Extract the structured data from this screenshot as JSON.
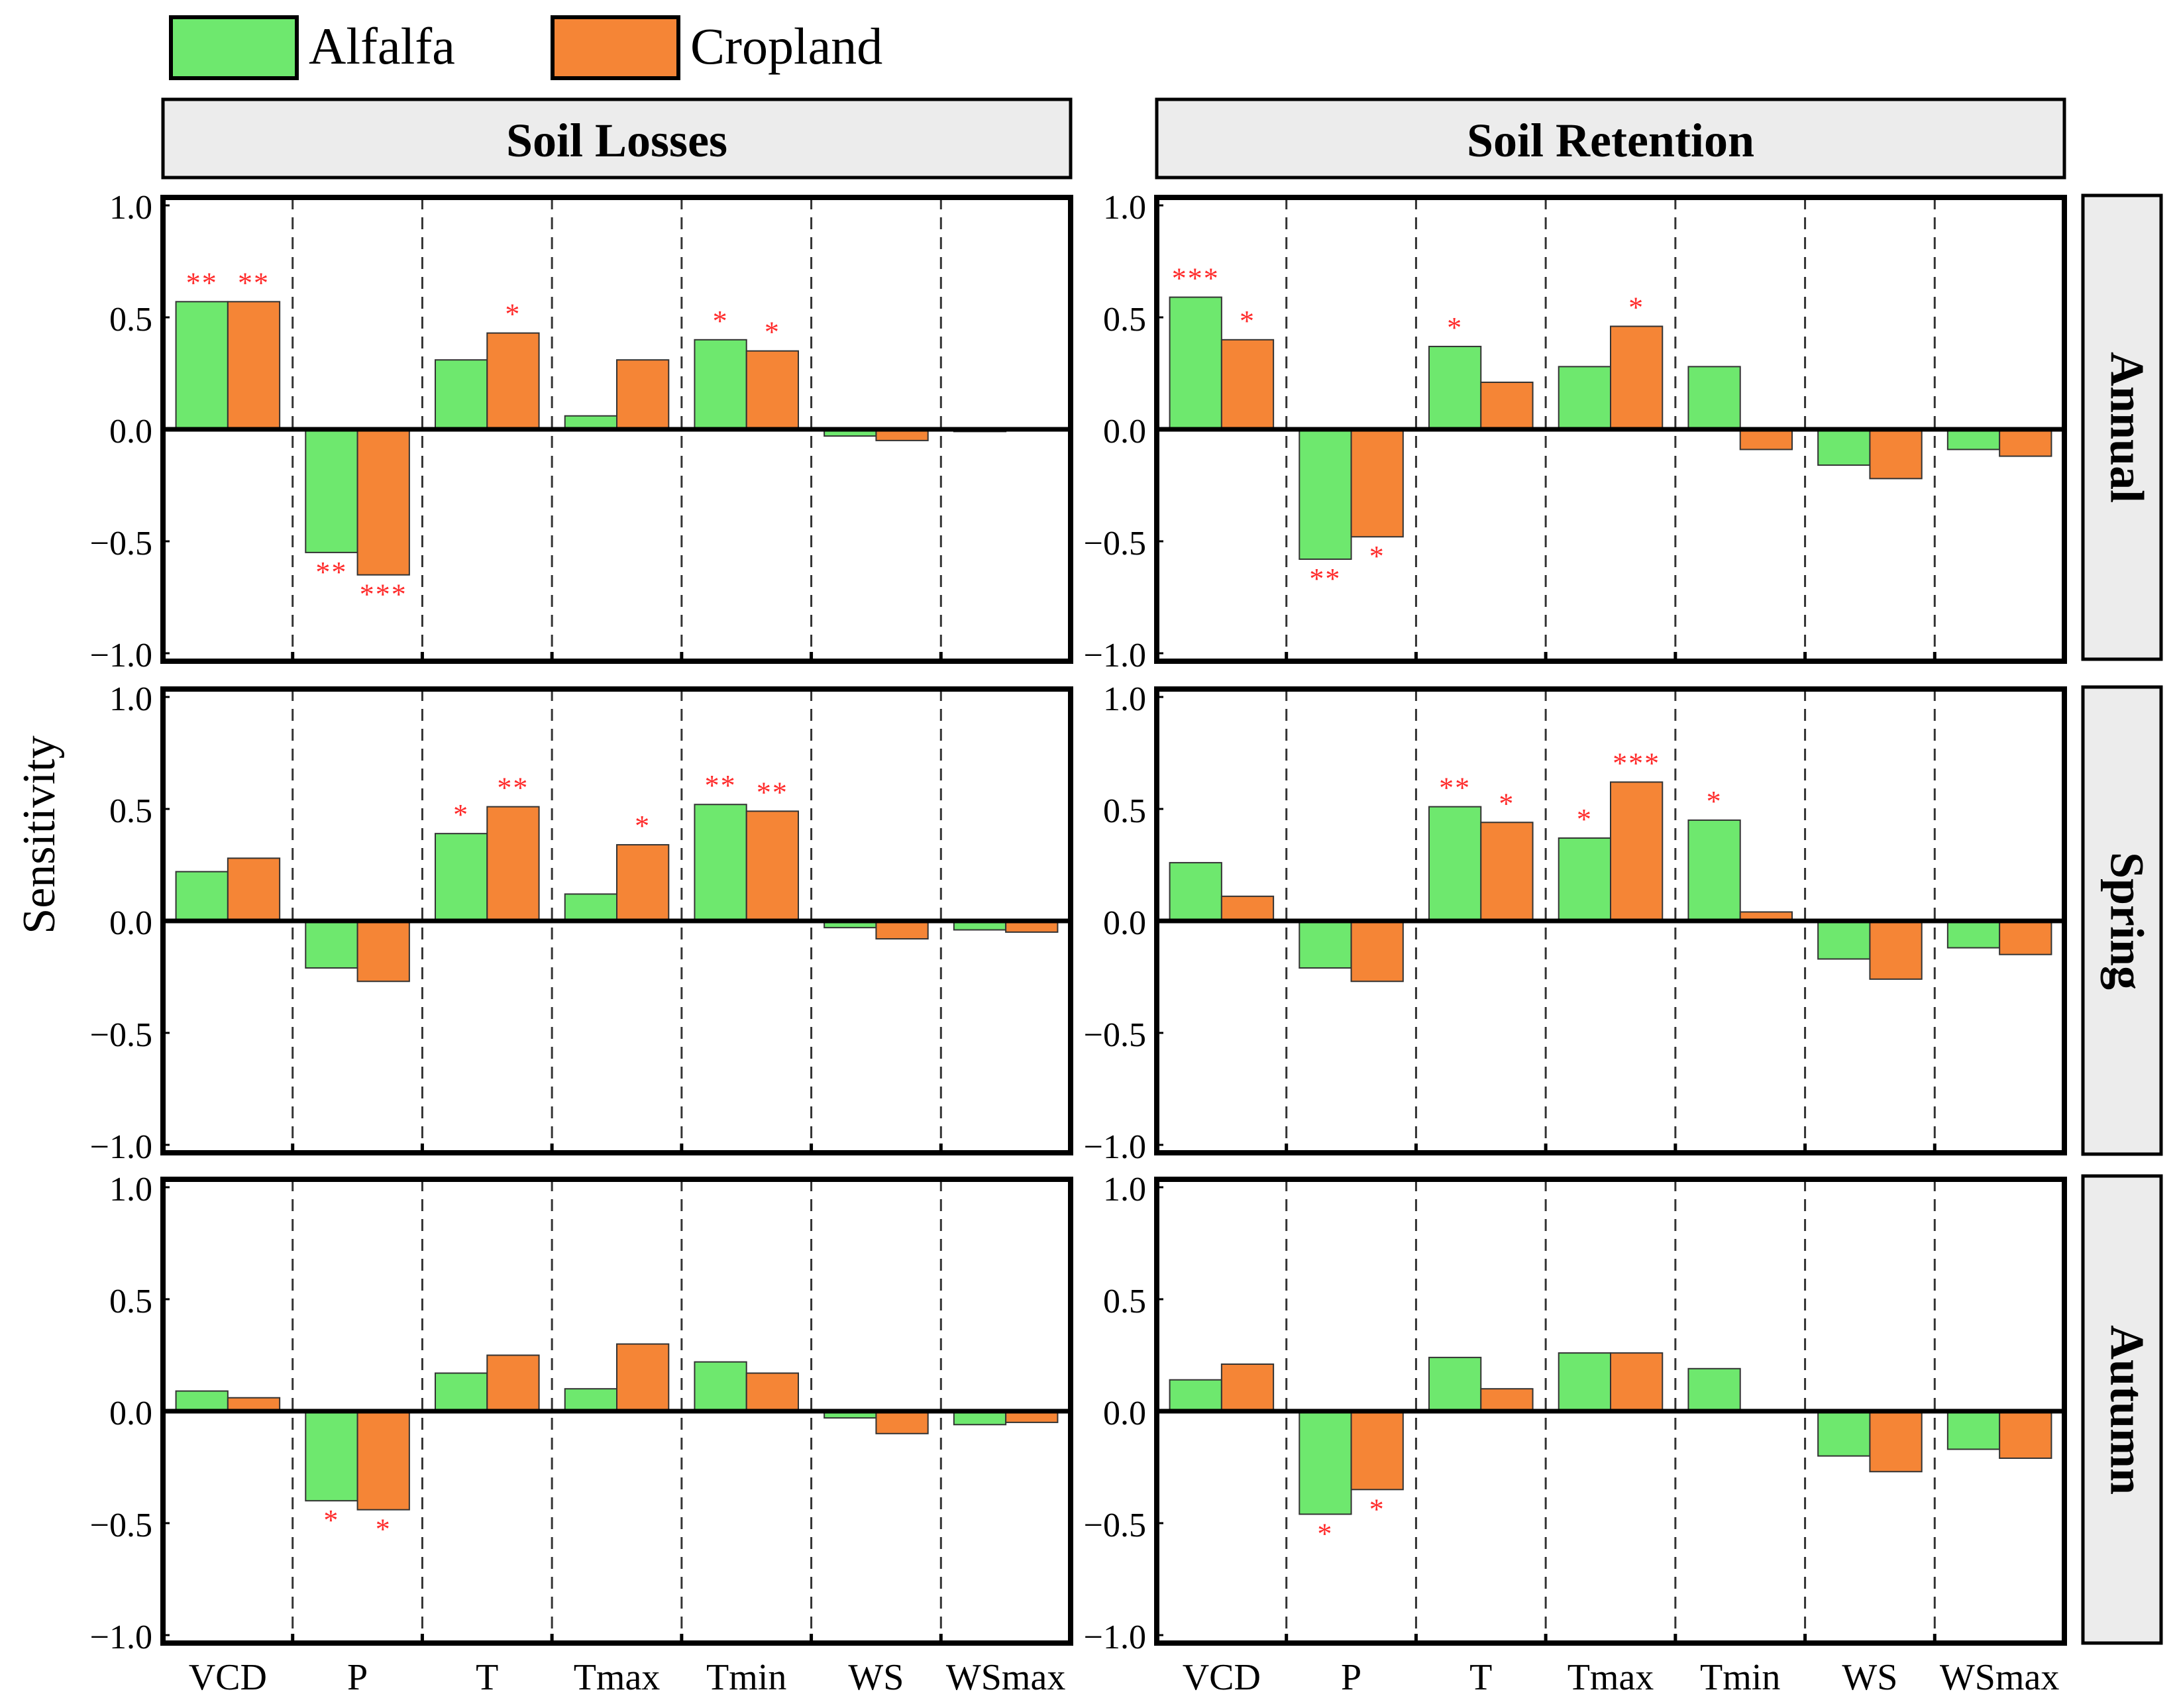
{
  "legend": [
    {
      "label": "Alfalfa",
      "color": "#6EE86E"
    },
    {
      "label": "Cropland",
      "color": "#F58536"
    }
  ],
  "colors": {
    "alfalfa": "#6EE86E",
    "cropland": "#F58536",
    "star": "#FF2A2A",
    "strip": "#ececec"
  },
  "ylabel": "Sensitivity",
  "column_titles": [
    "Soil Losses",
    "Soil Retention"
  ],
  "row_titles": [
    "Annual",
    "Spring",
    "Autumn"
  ],
  "yticks": [
    "1.0",
    "0.5",
    "0.0",
    "−0.5",
    "−1.0"
  ],
  "chart_data": {
    "type": "bar",
    "categories": [
      "VCD",
      "P",
      "T",
      "Tmax",
      "Tmin",
      "WS",
      "WSmax"
    ],
    "ylim": [
      -1.0,
      1.0
    ],
    "ylabel": "Sensitivity",
    "series_names": [
      "Alfalfa",
      "Cropland"
    ],
    "panels": [
      {
        "row": "Annual",
        "col": "Soil Losses",
        "alfalfa": [
          0.57,
          -0.55,
          0.31,
          0.06,
          0.4,
          -0.03,
          -0.01
        ],
        "cropland": [
          0.57,
          -0.65,
          0.43,
          0.31,
          0.35,
          -0.05,
          0.0
        ],
        "alfalfa_sig": [
          "**",
          "**",
          "",
          "",
          "*",
          "",
          ""
        ],
        "cropland_sig": [
          "**",
          "***",
          "*",
          "",
          "*",
          "",
          ""
        ]
      },
      {
        "row": "Annual",
        "col": "Soil Retention",
        "alfalfa": [
          0.59,
          -0.58,
          0.37,
          0.28,
          0.28,
          -0.16,
          -0.09
        ],
        "cropland": [
          0.4,
          -0.48,
          0.21,
          0.46,
          -0.09,
          -0.22,
          -0.12
        ],
        "alfalfa_sig": [
          "***",
          "**",
          "*",
          "",
          "",
          "",
          ""
        ],
        "cropland_sig": [
          "*",
          "*",
          "",
          "*",
          "",
          "",
          ""
        ]
      },
      {
        "row": "Spring",
        "col": "Soil Losses",
        "alfalfa": [
          0.22,
          -0.21,
          0.39,
          0.12,
          0.52,
          -0.03,
          -0.04
        ],
        "cropland": [
          0.28,
          -0.27,
          0.51,
          0.34,
          0.49,
          -0.08,
          -0.05
        ],
        "alfalfa_sig": [
          "",
          "",
          "*",
          "",
          "**",
          "",
          ""
        ],
        "cropland_sig": [
          "",
          "",
          "**",
          "*",
          "**",
          "",
          ""
        ]
      },
      {
        "row": "Spring",
        "col": "Soil Retention",
        "alfalfa": [
          0.26,
          -0.21,
          0.51,
          0.37,
          0.45,
          -0.17,
          -0.12
        ],
        "cropland": [
          0.11,
          -0.27,
          0.44,
          0.62,
          0.04,
          -0.26,
          -0.15
        ],
        "alfalfa_sig": [
          "",
          "",
          "**",
          "*",
          "*",
          "",
          ""
        ],
        "cropland_sig": [
          "",
          "",
          "*",
          "***",
          "",
          "",
          ""
        ]
      },
      {
        "row": "Autumn",
        "col": "Soil Losses",
        "alfalfa": [
          0.09,
          -0.4,
          0.17,
          0.1,
          0.22,
          -0.03,
          -0.06
        ],
        "cropland": [
          0.06,
          -0.44,
          0.25,
          0.3,
          0.17,
          -0.1,
          -0.05
        ],
        "alfalfa_sig": [
          "",
          "*",
          "",
          "",
          "",
          "",
          ""
        ],
        "cropland_sig": [
          "",
          "*",
          "",
          "",
          "",
          "",
          ""
        ]
      },
      {
        "row": "Autumn",
        "col": "Soil Retention",
        "alfalfa": [
          0.14,
          -0.46,
          0.24,
          0.26,
          0.19,
          -0.2,
          -0.17
        ],
        "cropland": [
          0.21,
          -0.35,
          0.1,
          0.26,
          0.0,
          -0.27,
          -0.21
        ],
        "alfalfa_sig": [
          "",
          "*",
          "",
          "",
          "",
          "",
          ""
        ],
        "cropland_sig": [
          "",
          "*",
          "",
          "",
          "",
          "",
          ""
        ]
      }
    ]
  }
}
